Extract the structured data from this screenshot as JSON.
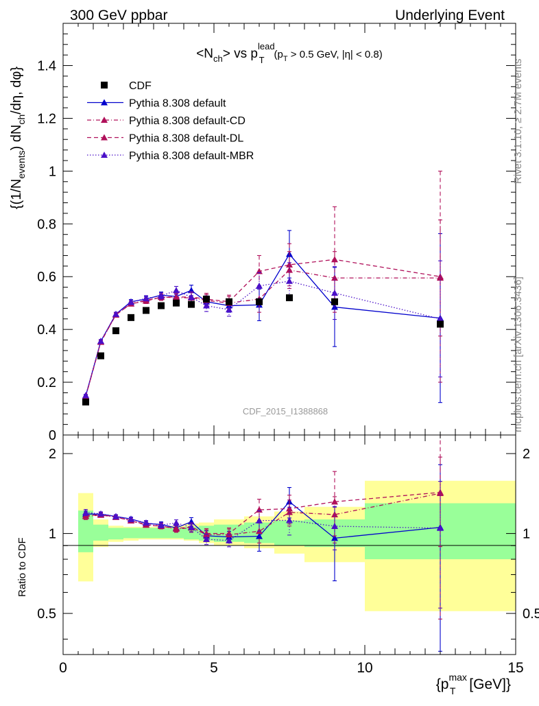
{
  "header": {
    "left": "300 GeV ppbar",
    "right": "Underlying Event"
  },
  "side_labels": {
    "rivet": "Rivet 3.1.10, ≥ 2.7M events",
    "mcplots": "mcplots.cern.ch [arXiv:1306.3436]"
  },
  "chart_data": {
    "type": "scatter",
    "title": "<N_ch> vs p_T^lead (p_T > 0.5 GeV, |η| < 0.8)",
    "watermark": "CDF_2015_I1388868",
    "xlabel": "{p_T^max [GeV]}",
    "ylabel": "{(1/N_events) dN_ch/dη, dφ}",
    "ratio_ylabel": "Ratio to CDF",
    "xlim": [
      0,
      15
    ],
    "ylim": [
      0,
      1.56
    ],
    "ratio_ylim": [
      0.35,
      2.35
    ],
    "ratio_log": true,
    "x_ticks": [
      "0",
      "5",
      "10",
      "15"
    ],
    "y_ticks": [
      "0",
      "0.2",
      "0.4",
      "0.6",
      "0.8",
      "1",
      "1.2",
      "1.4"
    ],
    "ratio_ticks": [
      "0.5",
      "1",
      "2"
    ],
    "x": [
      0.75,
      1.25,
      1.75,
      2.25,
      2.75,
      3.25,
      3.75,
      4.25,
      4.75,
      5.5,
      6.5,
      7.5,
      9.0,
      12.5
    ],
    "bin_edges": [
      0.5,
      1.0,
      1.5,
      2.0,
      2.5,
      3.0,
      3.5,
      4.0,
      4.5,
      5.0,
      6.0,
      7.0,
      8.0,
      10.0,
      15.0
    ],
    "reference": {
      "name": "CDF",
      "values": [
        0.125,
        0.3,
        0.395,
        0.445,
        0.472,
        0.49,
        0.5,
        0.495,
        0.515,
        0.505,
        0.505,
        0.52,
        0.505,
        0.42
      ]
    },
    "band_green": [
      [
        0.85,
        1.22
      ],
      [
        0.94,
        1.08
      ],
      [
        0.95,
        1.05
      ],
      [
        0.96,
        1.05
      ],
      [
        0.96,
        1.05
      ],
      [
        0.96,
        1.05
      ],
      [
        0.96,
        1.05
      ],
      [
        0.95,
        1.06
      ],
      [
        0.94,
        1.07
      ],
      [
        0.93,
        1.08
      ],
      [
        0.92,
        1.1
      ],
      [
        0.9,
        1.12
      ],
      [
        0.89,
        1.13
      ],
      [
        0.8,
        1.3
      ]
    ],
    "band_yellow": [
      [
        0.66,
        1.42
      ],
      [
        0.89,
        1.13
      ],
      [
        0.93,
        1.07
      ],
      [
        0.94,
        1.06
      ],
      [
        0.95,
        1.06
      ],
      [
        0.95,
        1.06
      ],
      [
        0.95,
        1.07
      ],
      [
        0.94,
        1.09
      ],
      [
        0.92,
        1.1
      ],
      [
        0.9,
        1.13
      ],
      [
        0.88,
        1.16
      ],
      [
        0.84,
        1.21
      ],
      [
        0.78,
        1.26
      ],
      [
        0.51,
        1.58
      ]
    ],
    "series": [
      {
        "name": "Pythia 8.308 default",
        "color": "#0000cc",
        "dash": "solid",
        "values": [
          0.148,
          0.355,
          0.458,
          0.505,
          0.515,
          0.53,
          0.525,
          0.548,
          0.505,
          0.49,
          0.493,
          0.685,
          0.485,
          0.443
        ],
        "errors": [
          0.004,
          0.006,
          0.007,
          0.008,
          0.01,
          0.012,
          0.015,
          0.02,
          0.022,
          0.025,
          0.06,
          0.09,
          0.15,
          0.32
        ]
      },
      {
        "name": "Pythia 8.308 default-CD",
        "color": "#b0105a",
        "dash": "6,3,1,3",
        "values": [
          0.145,
          0.352,
          0.455,
          0.498,
          0.51,
          0.523,
          0.52,
          0.52,
          0.51,
          0.5,
          0.515,
          0.625,
          0.595,
          0.595
        ],
        "errors": [
          0.004,
          0.006,
          0.007,
          0.008,
          0.01,
          0.012,
          0.015,
          0.02,
          0.022,
          0.025,
          0.05,
          0.07,
          0.1,
          0.22
        ]
      },
      {
        "name": "Pythia 8.308 default-DL",
        "color": "#b0105a",
        "dash": "6,4",
        "values": [
          0.146,
          0.353,
          0.456,
          0.497,
          0.508,
          0.522,
          0.523,
          0.523,
          0.515,
          0.505,
          0.62,
          0.645,
          0.665,
          0.6
        ],
        "errors": [
          0.004,
          0.006,
          0.007,
          0.008,
          0.01,
          0.012,
          0.015,
          0.02,
          0.022,
          0.025,
          0.06,
          0.08,
          0.2,
          0.4
        ]
      },
      {
        "name": "Pythia 8.308 default-MBR",
        "color": "#4a10c8",
        "dash": "1.5,2.5",
        "values": [
          0.15,
          0.356,
          0.458,
          0.503,
          0.518,
          0.527,
          0.548,
          0.522,
          0.49,
          0.475,
          0.565,
          0.583,
          0.538,
          0.44
        ],
        "errors": [
          0.004,
          0.006,
          0.007,
          0.008,
          0.01,
          0.012,
          0.015,
          0.02,
          0.022,
          0.025,
          0.05,
          0.07,
          0.1,
          0.22
        ]
      }
    ]
  }
}
